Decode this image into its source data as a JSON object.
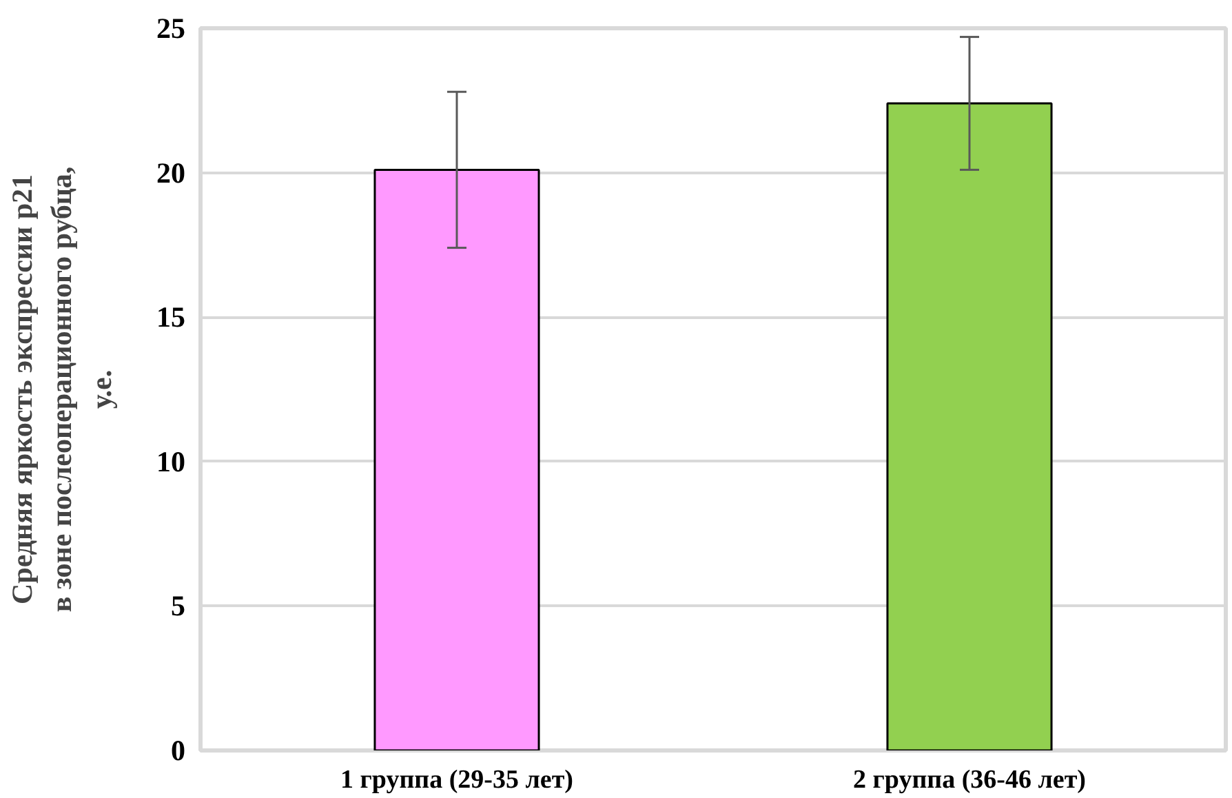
{
  "chart_data": {
    "type": "bar",
    "ylabel": "Средняя яркость экспрессии р21\nв зоне послеоперационного рубца,\nу.е.",
    "categories": [
      "1 группа (29-35 лет)",
      "2 группа (36-46 лет)"
    ],
    "values": [
      20.1,
      22.4
    ],
    "colors": [
      "#ff99ff",
      "#92d050"
    ],
    "errors": [
      2.7,
      2.3
    ],
    "ylim": [
      0,
      25
    ],
    "yticks": [
      0,
      5,
      10,
      15,
      20,
      25
    ],
    "grid": "y"
  }
}
